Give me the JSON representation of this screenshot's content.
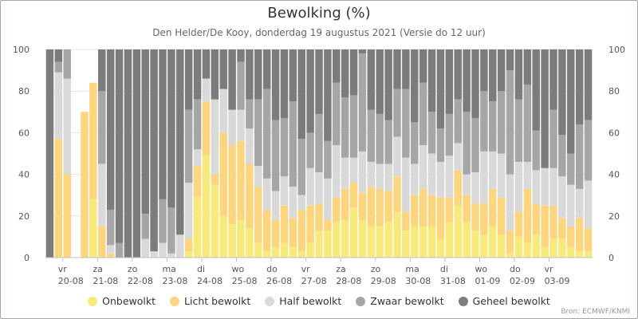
{
  "chart_data": {
    "type": "bar",
    "stacked": true,
    "title": "Bewolking (%)",
    "subtitle": "Den Helder/De Kooy, donderdag 19 augustus 2021 (Versie do 12 uur)",
    "ylim": [
      0,
      100
    ],
    "yticks": [
      0,
      20,
      40,
      60,
      80,
      100
    ],
    "grid": true,
    "legend_position": "bottom",
    "credit": "Bron: ECMWF/KNMI",
    "day_labels": [
      {
        "day": "vr",
        "date": "20-08",
        "bar": 2
      },
      {
        "day": "za",
        "date": "21-08",
        "bar": 6
      },
      {
        "day": "zo",
        "date": "22-08",
        "bar": 10
      },
      {
        "day": "ma",
        "date": "23-08",
        "bar": 14
      },
      {
        "day": "di",
        "date": "24-08",
        "bar": 18
      },
      {
        "day": "wo",
        "date": "25-08",
        "bar": 22
      },
      {
        "day": "do",
        "date": "26-08",
        "bar": 26
      },
      {
        "day": "vr",
        "date": "27-08",
        "bar": 30
      },
      {
        "day": "za",
        "date": "28-08",
        "bar": 34
      },
      {
        "day": "zo",
        "date": "29-08",
        "bar": 38
      },
      {
        "day": "ma",
        "date": "30-08",
        "bar": 42
      },
      {
        "day": "di",
        "date": "31-08",
        "bar": 46
      },
      {
        "day": "wo",
        "date": "01-09",
        "bar": 50
      },
      {
        "day": "do",
        "date": "02-09",
        "bar": 54
      },
      {
        "day": "vr",
        "date": "03-09",
        "bar": 58
      }
    ],
    "series": [
      {
        "name": "Onbewolkt",
        "color": "#f7ea7b",
        "values": [
          0,
          0,
          0,
          0,
          0,
          28,
          0,
          0,
          0,
          0,
          0,
          0,
          0,
          0,
          0,
          0,
          3,
          29,
          49,
          35,
          20,
          16,
          18,
          14,
          7,
          3,
          5,
          7,
          5,
          3,
          7,
          13,
          13,
          17,
          18,
          24,
          18,
          15,
          15,
          17,
          22,
          13,
          15,
          15,
          15,
          9,
          17,
          25,
          17,
          13,
          11,
          15,
          11,
          2,
          10,
          7,
          11,
          5,
          9,
          9,
          5,
          3,
          3
        ]
      },
      {
        "name": "Licht bewolkt",
        "color": "#fdd57e",
        "values": [
          0,
          57,
          40,
          0,
          70,
          56,
          15,
          2,
          0,
          0,
          0,
          0,
          0,
          0,
          0,
          0,
          6,
          15,
          26,
          5,
          40,
          38,
          38,
          31,
          27,
          20,
          13,
          18,
          14,
          20,
          18,
          13,
          5,
          12,
          15,
          12,
          13,
          19,
          18,
          15,
          17,
          9,
          15,
          18,
          15,
          20,
          12,
          17,
          13,
          13,
          15,
          18,
          18,
          11,
          12,
          26,
          15,
          20,
          16,
          10,
          10,
          16,
          11
        ]
      },
      {
        "name": "Half bewolkt",
        "color": "#d9d9d9",
        "values": [
          0,
          32,
          46,
          0,
          0,
          0,
          30,
          4,
          0,
          0,
          0,
          9,
          3,
          7,
          2,
          11,
          27,
          8,
          11,
          36,
          21,
          17,
          15,
          17,
          10,
          15,
          14,
          14,
          15,
          7,
          18,
          15,
          20,
          25,
          15,
          12,
          20,
          12,
          12,
          13,
          19,
          26,
          15,
          21,
          20,
          17,
          20,
          13,
          10,
          15,
          25,
          18,
          21,
          27,
          24,
          13,
          16,
          18,
          18,
          20,
          20,
          14,
          23
        ]
      },
      {
        "name": "Zwaar bewolkt",
        "color": "#a6a6a6",
        "values": [
          0,
          5,
          14,
          0,
          0,
          0,
          35,
          17,
          7,
          0,
          0,
          12,
          0,
          21,
          22,
          0,
          35,
          24,
          0,
          0,
          0,
          0,
          23,
          14,
          32,
          43,
          34,
          28,
          41,
          27,
          17,
          28,
          18,
          30,
          29,
          30,
          47,
          25,
          24,
          21,
          23,
          33,
          20,
          30,
          20,
          16,
          20,
          21,
          30,
          26,
          29,
          24,
          30,
          50,
          30,
          37,
          19,
          0,
          28,
          20,
          15,
          31,
          29
        ]
      },
      {
        "name": "Geheel bewolkt",
        "color": "#7c7c7c",
        "values": [
          100,
          6,
          0,
          0,
          0,
          0,
          20,
          77,
          93,
          100,
          100,
          79,
          97,
          72,
          76,
          89,
          29,
          24,
          14,
          24,
          19,
          29,
          6,
          24,
          24,
          19,
          34,
          33,
          25,
          43,
          40,
          31,
          44,
          16,
          23,
          22,
          2,
          29,
          31,
          34,
          19,
          19,
          35,
          16,
          30,
          38,
          31,
          24,
          30,
          33,
          20,
          25,
          20,
          10,
          24,
          17,
          39,
          57,
          29,
          41,
          50,
          36,
          34
        ]
      }
    ]
  }
}
